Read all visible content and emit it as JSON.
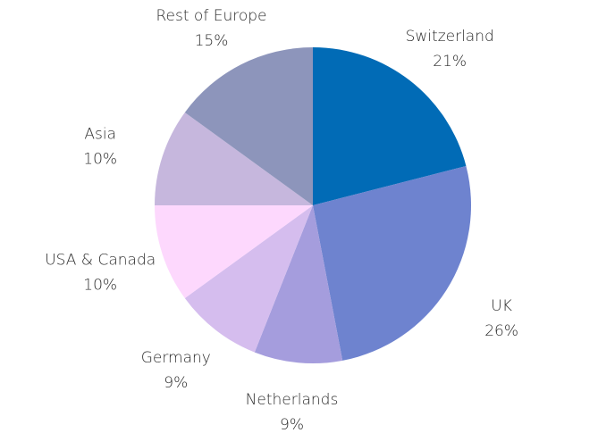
{
  "chart_data": {
    "type": "pie",
    "title": "",
    "start_angle_deg": 0,
    "direction": "clockwise",
    "slices": [
      {
        "label": "Switzerland",
        "value": 21,
        "value_label": "21%",
        "color": "#016bb6"
      },
      {
        "label": "UK",
        "value": 26,
        "value_label": "26%",
        "color": "#6e83cf"
      },
      {
        "label": "Netherlands",
        "value": 9,
        "value_label": "9%",
        "color": "#a59ddd"
      },
      {
        "label": "Germany",
        "value": 9,
        "value_label": "9%",
        "color": "#d5bdee"
      },
      {
        "label": "USA & Canada",
        "value": 10,
        "value_label": "10%",
        "color": "#fdd8fd"
      },
      {
        "label": "Asia",
        "value": 10,
        "value_label": "10%",
        "color": "#c6b7dd"
      },
      {
        "label": "Rest of Europe",
        "value": 15,
        "value_label": "15%",
        "color": "#8d95bb"
      }
    ]
  }
}
